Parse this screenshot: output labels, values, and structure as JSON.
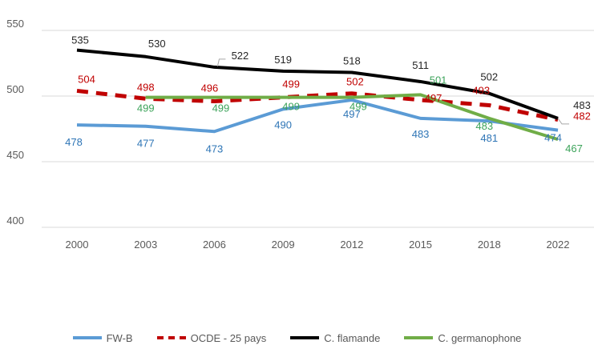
{
  "chart_data": {
    "type": "line",
    "title": "",
    "xlabel": "",
    "ylabel": "",
    "x": [
      "2000",
      "2003",
      "2006",
      "2009",
      "2012",
      "2015",
      "2018",
      "2022"
    ],
    "ylim": [
      400,
      550
    ],
    "yticks": [
      400,
      450,
      500,
      550
    ],
    "grid": true,
    "legend_position": "bottom",
    "series": [
      {
        "name": "FW-B",
        "color": "#5B9BD5",
        "label_color": "#2E75B6",
        "dash": "solid",
        "values": [
          478,
          477,
          473,
          490,
          497,
          483,
          481,
          474
        ]
      },
      {
        "name": "OCDE - 25 pays",
        "color": "#C00000",
        "label_color": "#C00000",
        "dash": "dashed",
        "values": [
          504,
          498,
          496,
          499,
          502,
          497,
          493,
          482
        ]
      },
      {
        "name": "C. flamande",
        "color": "#000000",
        "label_color": "#262626",
        "dash": "solid",
        "values": [
          535,
          530,
          522,
          519,
          518,
          511,
          502,
          483
        ]
      },
      {
        "name": "C. germanophone",
        "color": "#70AD47",
        "label_color": "#3CA35A",
        "dash": "solid",
        "values": [
          null,
          499,
          499,
          499,
          499,
          501,
          483,
          467
        ]
      }
    ]
  }
}
